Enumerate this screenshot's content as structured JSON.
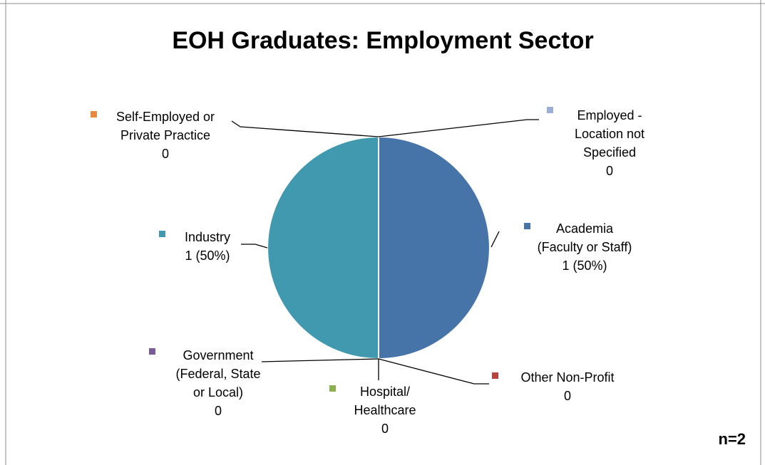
{
  "chart_data": {
    "type": "pie",
    "title": "EOH Graduates: Employment Sector",
    "note": "n=2",
    "slices": [
      {
        "key": "academia",
        "label_lines": [
          "Academia",
          "(Faculty or Staff)"
        ],
        "value_text": "1 (50%)",
        "value": 1,
        "percent": 50,
        "color": "#4674A8"
      },
      {
        "key": "other-non-profit",
        "label_lines": [
          "Other Non-Profit"
        ],
        "value_text": "0",
        "value": 0,
        "percent": 0,
        "color": "#B5443E"
      },
      {
        "key": "hospital-healthcare",
        "label_lines": [
          "Hospital/",
          "Healthcare"
        ],
        "value_text": "0",
        "value": 0,
        "percent": 0,
        "color": "#8DB04F"
      },
      {
        "key": "government",
        "label_lines": [
          "Government",
          "(Federal, State",
          "or Local)"
        ],
        "value_text": "0",
        "value": 0,
        "percent": 0,
        "color": "#7A5B99"
      },
      {
        "key": "industry",
        "label_lines": [
          "Industry"
        ],
        "value_text": "1 (50%)",
        "value": 1,
        "percent": 50,
        "color": "#4099AE"
      },
      {
        "key": "self-employed",
        "label_lines": [
          "Self-Employed or",
          "Private Practice"
        ],
        "value_text": "0",
        "value": 0,
        "percent": 0,
        "color": "#E8893D"
      },
      {
        "key": "employed-unspecified",
        "label_lines": [
          "Employed -",
          "Location not",
          "Specified"
        ],
        "value_text": "0",
        "value": 0,
        "percent": 0,
        "color": "#9BAFD6"
      }
    ]
  }
}
